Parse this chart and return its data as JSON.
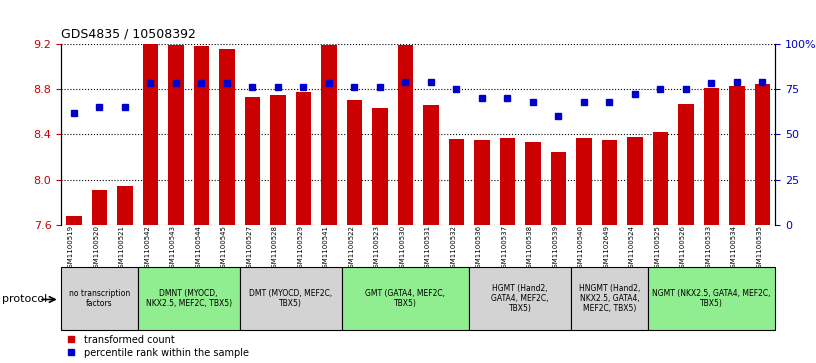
{
  "title": "GDS4835 / 10508392",
  "samples": [
    "GSM1100519",
    "GSM1100520",
    "GSM1100521",
    "GSM1100542",
    "GSM1100543",
    "GSM1100544",
    "GSM1100545",
    "GSM1100527",
    "GSM1100528",
    "GSM1100529",
    "GSM1100541",
    "GSM1100522",
    "GSM1100523",
    "GSM1100530",
    "GSM1100531",
    "GSM1100532",
    "GSM1100536",
    "GSM1100537",
    "GSM1100538",
    "GSM1100539",
    "GSM1100540",
    "GSM1102649",
    "GSM1100524",
    "GSM1100525",
    "GSM1100526",
    "GSM1100533",
    "GSM1100534",
    "GSM1100535"
  ],
  "transformed_count": [
    7.68,
    7.91,
    7.94,
    9.2,
    9.19,
    9.18,
    9.15,
    8.73,
    8.75,
    8.77,
    9.19,
    8.7,
    8.63,
    9.19,
    8.66,
    8.36,
    8.35,
    8.37,
    8.33,
    8.24,
    8.37,
    8.35,
    8.38,
    8.42,
    8.67,
    8.81,
    8.83,
    8.84
  ],
  "percentile_rank": [
    62,
    65,
    65,
    78,
    78,
    78,
    78,
    76,
    76,
    76,
    78,
    76,
    76,
    79,
    79,
    75,
    70,
    70,
    68,
    60,
    68,
    68,
    72,
    75,
    75,
    78,
    79,
    79
  ],
  "ylim_left": [
    7.6,
    9.2
  ],
  "ylim_right": [
    0,
    100
  ],
  "yticks_left": [
    7.6,
    8.0,
    8.4,
    8.8,
    9.2
  ],
  "yticks_right": [
    0,
    25,
    50,
    75,
    100
  ],
  "ytick_labels_right": [
    "0",
    "25",
    "50",
    "75",
    "100%"
  ],
  "bar_color": "#cc0000",
  "dot_color": "#0000cc",
  "grid_color": "#000000",
  "protocol_groups": [
    {
      "label": "no transcription\nfactors",
      "start": 0,
      "end": 3,
      "color": "#d3d3d3"
    },
    {
      "label": "DMNT (MYOCD,\nNKX2.5, MEF2C, TBX5)",
      "start": 3,
      "end": 7,
      "color": "#90ee90"
    },
    {
      "label": "DMT (MYOCD, MEF2C,\nTBX5)",
      "start": 7,
      "end": 11,
      "color": "#d3d3d3"
    },
    {
      "label": "GMT (GATA4, MEF2C,\nTBX5)",
      "start": 11,
      "end": 16,
      "color": "#90ee90"
    },
    {
      "label": "HGMT (Hand2,\nGATA4, MEF2C,\nTBX5)",
      "start": 16,
      "end": 20,
      "color": "#d3d3d3"
    },
    {
      "label": "HNGMT (Hand2,\nNKX2.5, GATA4,\nMEF2C, TBX5)",
      "start": 20,
      "end": 23,
      "color": "#d3d3d3"
    },
    {
      "label": "NGMT (NKX2.5, GATA4, MEF2C,\nTBX5)",
      "start": 23,
      "end": 28,
      "color": "#90ee90"
    }
  ],
  "bar_width": 0.6,
  "ylabel_left_color": "#cc0000",
  "ylabel_right_color": "#0000cc"
}
